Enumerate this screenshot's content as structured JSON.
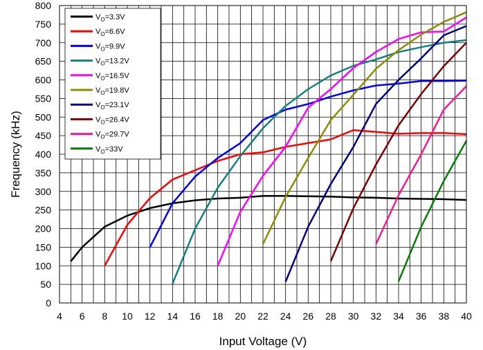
{
  "chart_data": {
    "type": "line",
    "xlabel": "Input Voltage (V)",
    "ylabel": "Frequency (kHz)",
    "xlim": [
      4,
      40
    ],
    "ylim": [
      0,
      800
    ],
    "x_ticks": [
      4,
      6,
      8,
      10,
      12,
      14,
      16,
      18,
      20,
      22,
      24,
      26,
      28,
      30,
      32,
      34,
      36,
      38,
      40
    ],
    "y_ticks": [
      0,
      50,
      100,
      150,
      200,
      250,
      300,
      350,
      400,
      450,
      500,
      550,
      600,
      650,
      700,
      750,
      800
    ],
    "x_minor_step": 1,
    "y_minor_step": 50,
    "grid": true,
    "legend_position": "top-left",
    "series": [
      {
        "name": "VO=3.3V",
        "label_main": "V",
        "label_sub": "O",
        "label_rest": "=3.3V",
        "color": "#000000",
        "x": [
          5,
          6,
          8,
          10,
          12,
          14,
          16,
          18,
          20,
          22,
          24,
          26,
          28,
          30,
          32,
          34,
          36,
          38,
          40
        ],
        "y": [
          112,
          150,
          205,
          235,
          255,
          268,
          276,
          281,
          283,
          288,
          288,
          287,
          286,
          284,
          283,
          281,
          280,
          279,
          277
        ]
      },
      {
        "name": "VO=6.6V",
        "label_main": "V",
        "label_sub": "O",
        "label_rest": "=6.6V",
        "color": "#ff0000",
        "x": [
          8,
          10,
          12,
          14,
          16,
          18,
          20,
          22,
          24,
          26,
          28,
          30,
          32,
          34,
          36,
          38,
          40
        ],
        "y": [
          100,
          210,
          282,
          332,
          357,
          382,
          400,
          405,
          420,
          430,
          440,
          465,
          460,
          455,
          457,
          457,
          454
        ]
      },
      {
        "name": "VO=9.9V",
        "label_main": "V",
        "label_sub": "O",
        "label_rest": "=9.9V",
        "color": "#0000ff",
        "x": [
          12,
          14,
          16,
          18,
          20,
          22,
          24,
          26,
          28,
          30,
          32,
          34,
          36,
          38,
          40
        ],
        "y": [
          150,
          268,
          340,
          390,
          430,
          492,
          520,
          535,
          555,
          572,
          585,
          590,
          597,
          597,
          598
        ]
      },
      {
        "name": "VO=13.2V",
        "label_main": "V",
        "label_sub": "O",
        "label_rest": "=13.2V",
        "color": "#118080",
        "x": [
          14,
          16,
          18,
          20,
          22,
          24,
          26,
          28,
          30,
          32,
          34,
          36,
          38,
          40
        ],
        "y": [
          52,
          200,
          310,
          395,
          470,
          530,
          575,
          612,
          638,
          655,
          675,
          688,
          700,
          707
        ]
      },
      {
        "name": "VO=16.5V",
        "label_main": "V",
        "label_sub": "O",
        "label_rest": "=16.5V",
        "color": "#ff00ff",
        "x": [
          18,
          20,
          22,
          24,
          26,
          28,
          30,
          32,
          34,
          36,
          38,
          40
        ],
        "y": [
          100,
          245,
          342,
          420,
          525,
          575,
          632,
          675,
          710,
          728,
          730,
          768
        ]
      },
      {
        "name": "VO=19.8V",
        "label_main": "V",
        "label_sub": "O",
        "label_rest": "=19.8V",
        "color": "#8c8c00",
        "x": [
          22,
          24,
          26,
          28,
          30,
          32,
          34,
          36,
          38,
          40
        ],
        "y": [
          158,
          285,
          390,
          492,
          560,
          630,
          680,
          722,
          756,
          782
        ]
      },
      {
        "name": "VO=23.1V",
        "label_main": "V",
        "label_sub": "O",
        "label_rest": "=23.1V",
        "color": "#000080",
        "x": [
          24,
          26,
          28,
          30,
          32,
          34,
          36,
          38,
          40
        ],
        "y": [
          57,
          205,
          320,
          420,
          535,
          600,
          658,
          720,
          745
        ]
      },
      {
        "name": "VO=26.4V",
        "label_main": "V",
        "label_sub": "O",
        "label_rest": "=26.4V",
        "color": "#800000",
        "x": [
          28,
          30,
          32,
          34,
          36,
          38,
          40
        ],
        "y": [
          112,
          255,
          372,
          478,
          562,
          637,
          700
        ]
      },
      {
        "name": "VO=29.7V",
        "label_main": "V",
        "label_sub": "O",
        "label_rest": "=29.7V",
        "color": "#ff1493",
        "x": [
          32,
          34,
          36,
          38,
          40
        ],
        "y": [
          158,
          290,
          400,
          520,
          583
        ]
      },
      {
        "name": "VO=33V",
        "label_main": "V",
        "label_sub": "O",
        "label_rest": "=33V",
        "color": "#008000",
        "x": [
          34,
          36,
          38,
          40
        ],
        "y": [
          58,
          205,
          328,
          436
        ]
      }
    ]
  }
}
